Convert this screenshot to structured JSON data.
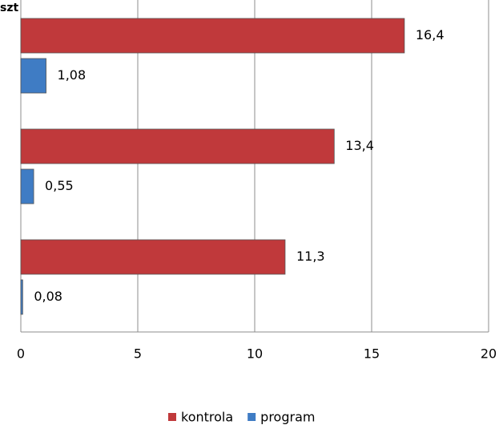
{
  "chart_data": {
    "type": "hbar",
    "y_label": "szt",
    "categories": [
      null,
      null,
      null
    ],
    "series": [
      {
        "name": "kontrola",
        "color": "#c0393b",
        "values": [
          16.4,
          13.4,
          11.3
        ],
        "value_labels": [
          "16,4",
          "13,4",
          "11,3"
        ]
      },
      {
        "name": "program",
        "color": "#3f7cc4",
        "values": [
          1.08,
          0.55,
          0.08
        ],
        "value_labels": [
          "1,08",
          "0,55",
          "0,08"
        ]
      }
    ],
    "xlim": [
      0,
      20
    ],
    "xticks": [
      0,
      5,
      10,
      15,
      20
    ],
    "grid": true,
    "legend": "bottom"
  }
}
